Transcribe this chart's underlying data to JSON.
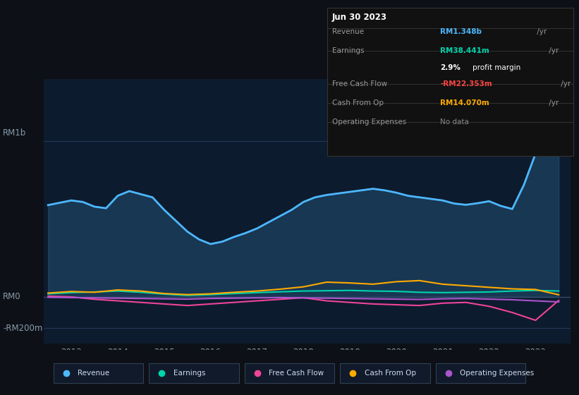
{
  "bg_color": "#0d1117",
  "plot_bg_color": "#0d1b2e",
  "title_box": {
    "date": "Jun 30 2023",
    "rows": [
      {
        "label": "Revenue",
        "value": "RM1.348b /yr",
        "value_color": "#4db8ff"
      },
      {
        "label": "Earnings",
        "value": "RM38.441m /yr",
        "value_color": "#00d4aa"
      },
      {
        "label": "",
        "value": "2.9% profit margin",
        "value_color": "#ffffff",
        "bold_part": "2.9%"
      },
      {
        "label": "Free Cash Flow",
        "value": "-RM22.353m /yr",
        "value_color": "#ff4444"
      },
      {
        "label": "Cash From Op",
        "value": "RM14.070m /yr",
        "value_color": "#ffaa00"
      },
      {
        "label": "Operating Expenses",
        "value": "No data",
        "value_color": "#888888"
      }
    ]
  },
  "ylabel_top": "RM1b",
  "ylabel_zero": "RM0",
  "ylabel_bottom": "-RM200m",
  "legend": [
    {
      "label": "Revenue",
      "color": "#4db8ff"
    },
    {
      "label": "Earnings",
      "color": "#00d4aa"
    },
    {
      "label": "Free Cash Flow",
      "color": "#ee4499"
    },
    {
      "label": "Cash From Op",
      "color": "#ffaa00"
    },
    {
      "label": "Operating Expenses",
      "color": "#aa55cc"
    }
  ],
  "x_ticks": [
    2013,
    2014,
    2015,
    2016,
    2017,
    2018,
    2019,
    2020,
    2021,
    2022,
    2023
  ],
  "ylim": [
    -300,
    1400
  ],
  "revenue": {
    "color": "#4db8ff",
    "x": [
      2012.5,
      2013.0,
      2013.25,
      2013.5,
      2013.75,
      2014.0,
      2014.25,
      2014.5,
      2014.75,
      2015.0,
      2015.25,
      2015.5,
      2015.75,
      2016.0,
      2016.25,
      2016.5,
      2016.75,
      2017.0,
      2017.25,
      2017.5,
      2017.75,
      2018.0,
      2018.25,
      2018.5,
      2018.75,
      2019.0,
      2019.25,
      2019.5,
      2019.75,
      2020.0,
      2020.25,
      2020.5,
      2020.75,
      2021.0,
      2021.25,
      2021.5,
      2021.75,
      2022.0,
      2022.25,
      2022.5,
      2022.75,
      2023.0,
      2023.25,
      2023.5
    ],
    "y": [
      590,
      620,
      610,
      580,
      570,
      650,
      680,
      660,
      640,
      560,
      490,
      420,
      370,
      340,
      355,
      385,
      410,
      440,
      480,
      520,
      560,
      610,
      640,
      655,
      665,
      675,
      685,
      695,
      685,
      670,
      650,
      640,
      630,
      620,
      600,
      592,
      602,
      615,
      585,
      565,
      720,
      920,
      1210,
      1348
    ]
  },
  "earnings": {
    "color": "#00d4aa",
    "x": [
      2012.5,
      2013.0,
      2013.5,
      2014.0,
      2014.5,
      2015.0,
      2015.5,
      2016.0,
      2016.5,
      2017.0,
      2017.5,
      2018.0,
      2018.5,
      2019.0,
      2019.5,
      2020.0,
      2020.5,
      2021.0,
      2021.5,
      2022.0,
      2022.25,
      2022.5,
      2022.75,
      2023.0,
      2023.5
    ],
    "y": [
      20,
      28,
      32,
      38,
      30,
      18,
      10,
      15,
      22,
      28,
      33,
      38,
      40,
      42,
      38,
      36,
      30,
      28,
      30,
      32,
      35,
      38,
      40,
      42,
      38
    ]
  },
  "free_cash_flow": {
    "color": "#ee4499",
    "x": [
      2012.5,
      2013.0,
      2013.5,
      2014.0,
      2014.5,
      2015.0,
      2015.5,
      2016.0,
      2016.5,
      2017.0,
      2017.5,
      2018.0,
      2018.25,
      2018.5,
      2019.0,
      2019.5,
      2020.0,
      2020.5,
      2021.0,
      2021.5,
      2022.0,
      2022.5,
      2023.0,
      2023.5
    ],
    "y": [
      5,
      0,
      -15,
      -25,
      -35,
      -45,
      -55,
      -45,
      -35,
      -25,
      -15,
      -5,
      -15,
      -25,
      -35,
      -45,
      -50,
      -55,
      -40,
      -35,
      -60,
      -100,
      -150,
      -22
    ]
  },
  "cash_from_op": {
    "color": "#ffaa00",
    "x": [
      2012.5,
      2013.0,
      2013.5,
      2014.0,
      2014.5,
      2015.0,
      2015.5,
      2016.0,
      2016.5,
      2017.0,
      2017.5,
      2018.0,
      2018.25,
      2018.5,
      2019.0,
      2019.5,
      2020.0,
      2020.5,
      2021.0,
      2021.5,
      2022.0,
      2022.5,
      2023.0,
      2023.5
    ],
    "y": [
      25,
      35,
      30,
      45,
      38,
      22,
      15,
      20,
      30,
      38,
      50,
      65,
      80,
      95,
      90,
      82,
      98,
      105,
      82,
      72,
      62,
      52,
      48,
      14
    ]
  },
  "op_expenses": {
    "color": "#aa55cc",
    "x": [
      2012.5,
      2013.0,
      2013.5,
      2014.0,
      2014.5,
      2015.0,
      2015.5,
      2016.0,
      2016.5,
      2017.0,
      2017.5,
      2018.0,
      2018.5,
      2019.0,
      2019.5,
      2020.0,
      2020.5,
      2021.0,
      2021.5,
      2022.0,
      2022.5,
      2023.0,
      2023.5
    ],
    "y": [
      -2,
      -4,
      -6,
      -8,
      -10,
      -12,
      -14,
      -10,
      -8,
      -6,
      -4,
      -6,
      -8,
      -10,
      -12,
      -14,
      -16,
      -12,
      -10,
      -14,
      -18,
      -25,
      -32
    ]
  }
}
